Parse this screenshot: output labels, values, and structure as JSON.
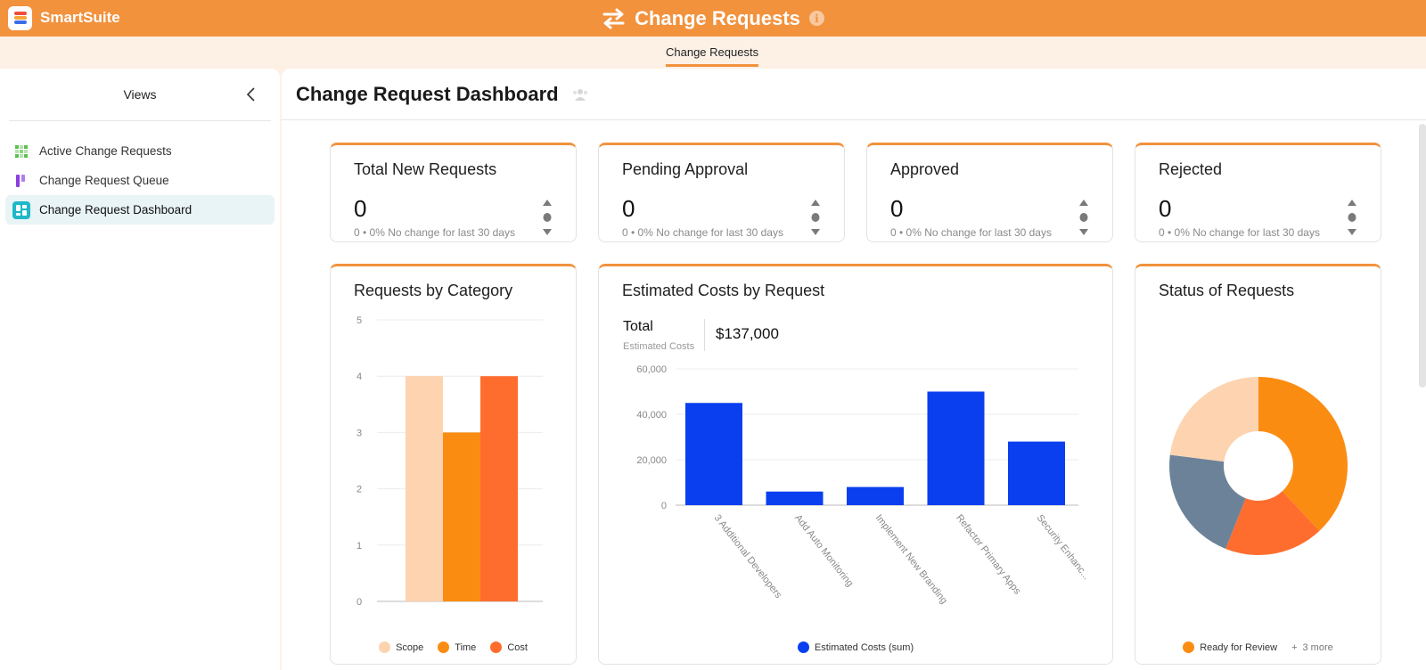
{
  "app": {
    "brand": "SmartSuite",
    "title": "Change Requests",
    "tab": "Change Requests"
  },
  "sidebar": {
    "title": "Views",
    "items": [
      {
        "label": "Active Change Requests",
        "icon": "grid-icon",
        "color": "#5cc052"
      },
      {
        "label": "Change Request Queue",
        "icon": "kanban-icon",
        "color": "#8c3fe0"
      },
      {
        "label": "Change Request Dashboard",
        "icon": "dashboard-icon",
        "color": "#1fb8c8",
        "active": true
      }
    ]
  },
  "dashboard": {
    "title": "Change Request Dashboard"
  },
  "kpis": [
    {
      "title": "Total New Requests",
      "value": "0",
      "sub": "0 • 0%  No change for last 30 days"
    },
    {
      "title": "Pending Approval",
      "value": "0",
      "sub": "0 • 0%  No change for last 30 days"
    },
    {
      "title": "Approved",
      "value": "0",
      "sub": "0 • 0%  No change for last 30 days"
    },
    {
      "title": "Rejected",
      "value": "0",
      "sub": "0 • 0%  No change for last 30 days"
    }
  ],
  "category_card": {
    "title": "Requests by Category"
  },
  "costs_card": {
    "title": "Estimated Costs by Request",
    "total_label": "Total",
    "total_sub": "Estimated Costs",
    "total_value": "$137,000"
  },
  "status_card": {
    "title": "Status of Requests",
    "legend_label": "Ready for Review",
    "more": "3 more"
  },
  "chart_data": [
    {
      "type": "bar",
      "title": "Requests by Category",
      "categories": [
        "Scope",
        "Time",
        "Cost"
      ],
      "values": [
        4,
        3,
        4
      ],
      "colors": [
        "#fdd3b0",
        "#fb8c12",
        "#ff6d2e"
      ],
      "ylim": [
        0,
        5
      ],
      "yticks": [
        "0",
        "1",
        "2",
        "3",
        "4",
        "5"
      ],
      "legend": [
        "Scope",
        "Time",
        "Cost"
      ]
    },
    {
      "type": "bar",
      "title": "Estimated Costs by Request",
      "categories": [
        "3 Additional Developers",
        "Add Auto Monitoring",
        "Implement New Branding",
        "Refactor Primary Apps",
        "Security Enhanc..."
      ],
      "values": [
        45000,
        6000,
        8000,
        50000,
        28000
      ],
      "color": "#0a3ff0",
      "ylim": [
        0,
        60000
      ],
      "yticks": [
        "0",
        "20,000",
        "40,000",
        "60,000"
      ],
      "legend": [
        "Estimated Costs (sum)"
      ]
    },
    {
      "type": "pie",
      "title": "Status of Requests",
      "slices": [
        {
          "label": "Ready for Review",
          "value": 38,
          "color": "#fb8c12"
        },
        {
          "label": "",
          "value": 18,
          "color": "#ff6d2e"
        },
        {
          "label": "",
          "value": 21,
          "color": "#6c8299"
        },
        {
          "label": "",
          "value": 23,
          "color": "#fdd3b0"
        }
      ]
    }
  ]
}
